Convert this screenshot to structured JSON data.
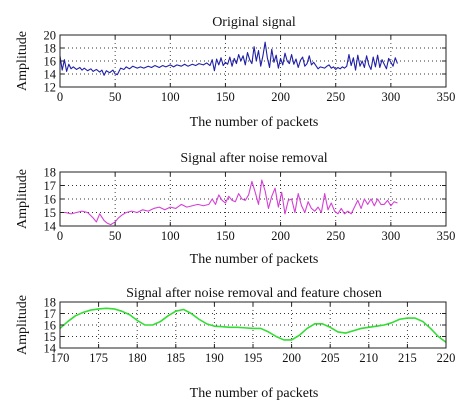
{
  "chart_data": [
    {
      "type": "line",
      "title": "Original signal",
      "xlabel": "The number of packets",
      "ylabel": "Amplitude",
      "xlim": [
        0,
        350
      ],
      "ylim": [
        12,
        20
      ],
      "xticks": [
        0,
        50,
        100,
        150,
        200,
        250,
        300,
        350
      ],
      "yticks": [
        12,
        14,
        16,
        18,
        20
      ],
      "grid": true,
      "color": "#1f1fa8",
      "series": [
        {
          "x": [
            0,
            2,
            4,
            6,
            8,
            10,
            12,
            15,
            18,
            20,
            22,
            25,
            28,
            30,
            33,
            36,
            38,
            40,
            42,
            45,
            48,
            50,
            52,
            55,
            58,
            60,
            63,
            66,
            70,
            73,
            76,
            80,
            83,
            86,
            90,
            93,
            96,
            100,
            103,
            106,
            110,
            113,
            116,
            120,
            123,
            126,
            130,
            133,
            136,
            138,
            140,
            142,
            144,
            146,
            148,
            150,
            152,
            154,
            156,
            158,
            160,
            162,
            164,
            166,
            168,
            170,
            172,
            174,
            176,
            178,
            180,
            182,
            184,
            186,
            188,
            190,
            192,
            194,
            196,
            198,
            200,
            202,
            204,
            206,
            208,
            210,
            212,
            214,
            216,
            218,
            220,
            222,
            224,
            226,
            228,
            230,
            232,
            234,
            236,
            238,
            240,
            242,
            244,
            246,
            248,
            250,
            252,
            254,
            256,
            258,
            260,
            262,
            264,
            266,
            268,
            270,
            272,
            274,
            276,
            278,
            280,
            282,
            284,
            286,
            288,
            290,
            292,
            294,
            296,
            298,
            300,
            302,
            304,
            306
          ],
          "y": [
            16.8,
            14.6,
            16.2,
            14.4,
            15.5,
            14.8,
            15.1,
            14.7,
            15.0,
            14.6,
            14.9,
            14.5,
            14.8,
            14.4,
            14.7,
            14.3,
            14.6,
            13.8,
            14.5,
            14.2,
            14.6,
            14.0,
            13.9,
            14.9,
            14.7,
            15.1,
            14.8,
            15.2,
            14.9,
            15.1,
            14.9,
            15.2,
            15.0,
            15.3,
            15.0,
            15.3,
            15.1,
            15.4,
            15.1,
            15.4,
            15.2,
            15.5,
            15.2,
            15.5,
            15.3,
            15.6,
            15.4,
            15.7,
            15.3,
            16.2,
            14.5,
            16.3,
            15.4,
            16.5,
            15.3,
            15.8,
            15.5,
            16.6,
            15.2,
            16.4,
            15.6,
            17.0,
            16.0,
            16.8,
            15.4,
            17.3,
            16.2,
            15.6,
            18.2,
            16.0,
            17.6,
            15.2,
            16.8,
            18.9,
            16.5,
            15.0,
            17.8,
            15.8,
            16.9,
            14.9,
            16.4,
            15.4,
            17.2,
            16.0,
            15.6,
            17.0,
            15.5,
            16.3,
            15.0,
            16.1,
            16.6,
            15.2,
            15.6,
            16.8,
            15.4,
            15.8,
            15.3,
            14.8,
            15.1,
            15.0,
            14.9,
            15.2,
            15.4,
            14.9,
            15.1,
            14.7,
            15.0,
            14.8,
            15.1,
            14.9,
            15.2,
            17.0,
            15.3,
            16.5,
            14.6,
            16.9,
            15.2,
            16.0,
            15.0,
            16.8,
            15.4,
            14.7,
            16.6,
            15.1,
            16.9,
            15.0,
            16.2,
            15.5,
            14.8,
            16.4,
            15.8,
            15.2,
            16.5,
            15.6
          ]
        }
      ]
    },
    {
      "type": "line",
      "title": "Signal after noise removal",
      "xlabel": "The number of packets",
      "ylabel": "Amplitude",
      "xlim": [
        0,
        350
      ],
      "ylim": [
        14,
        18
      ],
      "xticks": [
        0,
        50,
        100,
        150,
        200,
        250,
        300,
        350
      ],
      "yticks": [
        14,
        15,
        16,
        17,
        18
      ],
      "grid": true,
      "color": "#d63fd6",
      "series": [
        {
          "x": [
            0,
            5,
            10,
            15,
            20,
            25,
            30,
            33,
            36,
            40,
            43,
            46,
            50,
            53,
            56,
            60,
            65,
            70,
            75,
            80,
            85,
            90,
            95,
            100,
            105,
            110,
            115,
            120,
            125,
            130,
            135,
            138,
            141,
            144,
            147,
            150,
            153,
            156,
            159,
            162,
            165,
            168,
            171,
            174,
            177,
            180,
            183,
            186,
            189,
            192,
            195,
            198,
            201,
            204,
            207,
            210,
            213,
            216,
            219,
            222,
            225,
            228,
            231,
            234,
            237,
            240,
            243,
            246,
            249,
            252,
            255,
            258,
            261,
            264,
            267,
            270,
            273,
            276,
            279,
            282,
            285,
            288,
            291,
            294,
            297,
            300,
            303,
            306
          ],
          "y": [
            15.0,
            15.0,
            14.9,
            15.0,
            15.1,
            15.0,
            14.6,
            14.3,
            14.9,
            14.4,
            14.2,
            14.1,
            14.3,
            14.6,
            14.8,
            15.0,
            15.1,
            15.0,
            15.2,
            15.1,
            15.3,
            15.4,
            15.2,
            15.4,
            15.3,
            15.6,
            15.4,
            15.5,
            15.6,
            15.5,
            15.6,
            16.0,
            15.6,
            16.3,
            15.9,
            15.7,
            16.2,
            15.9,
            15.8,
            16.4,
            16.0,
            15.9,
            16.3,
            17.3,
            16.5,
            15.6,
            17.4,
            16.6,
            15.3,
            16.2,
            16.8,
            15.4,
            16.5,
            14.9,
            15.9,
            16.0,
            15.0,
            16.4,
            15.5,
            15.0,
            15.8,
            15.3,
            15.1,
            15.4,
            15.0,
            16.4,
            15.2,
            15.7,
            15.1,
            14.9,
            15.3,
            14.9,
            15.1,
            14.9,
            15.4,
            15.9,
            15.3,
            16.0,
            15.6,
            16.0,
            15.5,
            16.0,
            15.6,
            15.6,
            15.9,
            15.5,
            15.8,
            15.7
          ]
        }
      ]
    },
    {
      "type": "line",
      "title": "Signal after noise removal and feature chosen",
      "xlabel": "The number of packets",
      "ylabel": "Amplitude",
      "xlim": [
        170,
        220
      ],
      "ylim": [
        14,
        18
      ],
      "xticks": [
        170,
        175,
        180,
        185,
        190,
        195,
        200,
        205,
        210,
        215,
        220
      ],
      "yticks": [
        14,
        15,
        16,
        17,
        18
      ],
      "grid": true,
      "color": "#33dd33",
      "series": [
        {
          "x": [
            170,
            171,
            172,
            173,
            174,
            175,
            176,
            177,
            178,
            179,
            180,
            181,
            182,
            183,
            184,
            185,
            186,
            187,
            188,
            189,
            190,
            191,
            192,
            193,
            194,
            195,
            196,
            197,
            198,
            199,
            200,
            201,
            202,
            203,
            204,
            205,
            206,
            207,
            208,
            209,
            210,
            211,
            212,
            213,
            214,
            215,
            216,
            217,
            218,
            219,
            220
          ],
          "y": [
            15.7,
            16.3,
            16.8,
            17.1,
            17.3,
            17.4,
            17.45,
            17.4,
            17.2,
            16.9,
            16.4,
            16.0,
            16.0,
            16.3,
            16.8,
            17.2,
            17.35,
            17.0,
            16.5,
            16.1,
            15.9,
            15.85,
            15.8,
            15.8,
            15.75,
            15.7,
            15.7,
            15.4,
            15.0,
            14.7,
            14.7,
            15.1,
            15.7,
            16.1,
            16.1,
            15.8,
            15.4,
            15.3,
            15.5,
            15.7,
            15.8,
            15.9,
            16.0,
            16.2,
            16.5,
            16.6,
            16.6,
            16.3,
            15.7,
            15.0,
            14.5
          ]
        }
      ]
    }
  ]
}
